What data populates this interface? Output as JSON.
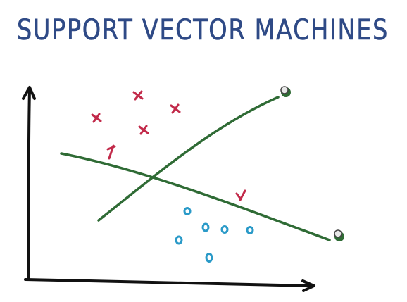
{
  "title": {
    "text": "SUPPORT VECTOR MACHINES",
    "color": "#2f4a86"
  },
  "colors": {
    "axis": "#111111",
    "separator": "#2f6b35",
    "positive_class": "#c22a4a",
    "negative_class": "#2a9ac8",
    "handle_fill": "#e8e8e8",
    "handle_stroke": "#444444"
  },
  "classes": {
    "positive_marker": "x",
    "negative_marker": "o"
  }
}
